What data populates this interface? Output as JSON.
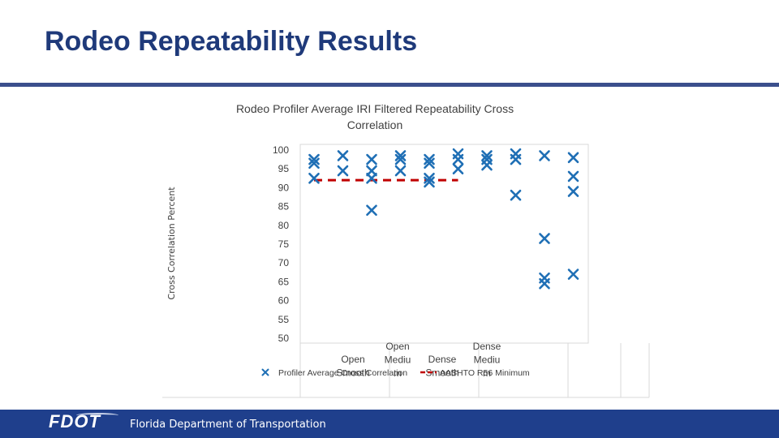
{
  "slide": {
    "title": "Rodeo Repeatability Results",
    "footer_org": "Florida Department of Transportation",
    "footer_logo": "FDOT"
  },
  "colors": {
    "title": "#1f3a7a",
    "marker": "#1f6fb5",
    "minimum_line": "#c00000",
    "footer_bg": "#1f3f8c"
  },
  "chart_data": {
    "type": "scatter",
    "title": "Rodeo Profiler Average IRI Filtered Repeatability Cross Correlation",
    "title_lines": [
      "Rodeo Profiler Average IRI Filtered Repeatability Cross",
      "Correlation"
    ],
    "ylabel": "Cross Correlation Percent",
    "ylim": [
      50,
      100
    ],
    "yticks": [
      100,
      95,
      90,
      85,
      80,
      75,
      70,
      65,
      60,
      55,
      50
    ],
    "grid": false,
    "category_labels": [
      {
        "pos": 1.0,
        "lines": [
          "Open",
          "Smooth"
        ]
      },
      {
        "pos": 1.5,
        "lines": [
          "Open",
          "Mediu",
          "m"
        ]
      },
      {
        "pos": 2.0,
        "lines": [
          "Dense",
          "Smooth"
        ]
      },
      {
        "pos": 2.5,
        "lines": [
          "Dense",
          "Mediu",
          "m"
        ]
      }
    ],
    "series": [
      {
        "name": "Profiler Average Cross Correlation",
        "marker": "x",
        "points": [
          {
            "x": 0,
            "y": [
              97.5,
              96.5,
              92.5
            ]
          },
          {
            "x": 1,
            "y": [
              98.5,
              94.5
            ]
          },
          {
            "x": 2,
            "y": [
              97.5,
              94.5,
              92.5,
              84
            ]
          },
          {
            "x": 3,
            "y": [
              98.5,
              97.5,
              94.5
            ]
          },
          {
            "x": 4,
            "y": [
              97.5,
              96.5,
              92.5,
              91.5
            ]
          },
          {
            "x": 5,
            "y": [
              99,
              97.5,
              95
            ]
          },
          {
            "x": 6,
            "y": [
              98.5,
              97.5,
              96
            ]
          },
          {
            "x": 7,
            "y": [
              99,
              97.5,
              88
            ]
          },
          {
            "x": 8,
            "y": [
              98.5,
              76.5,
              66,
              64.5
            ]
          },
          {
            "x": 9,
            "y": [
              98,
              93,
              89,
              67
            ]
          }
        ]
      },
      {
        "name": "AASHTO R56 Minimum",
        "line": "dashed",
        "y": 92,
        "x_range": [
          0,
          5
        ]
      }
    ],
    "legend": {
      "placement": "bottom",
      "entries": [
        "Profiler Average Cross Correlation",
        "AASHTO R56 Minimum"
      ]
    }
  }
}
